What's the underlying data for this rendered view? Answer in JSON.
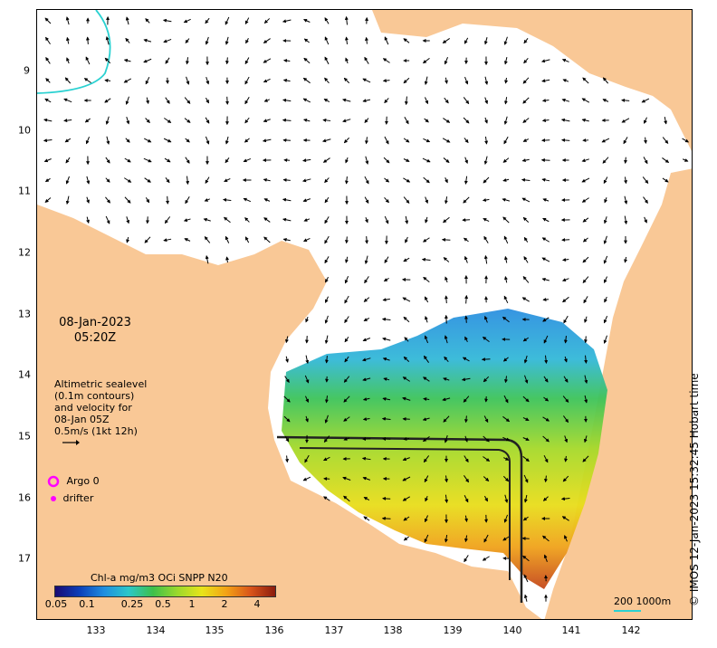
{
  "datetime": {
    "date": "08-Jan-2023",
    "time": "05:20Z"
  },
  "info_lines": [
    "Altimetric sealevel",
    "(0.1m contours)",
    "and velocity for",
    "08-Jan 05Z",
    "0.5m/s (1kt 12h)"
  ],
  "markers": {
    "argo": "Argo 0",
    "drifter": "drifter"
  },
  "colorbar": {
    "title": "Chl-a mg/m3 OCi SNPP N20",
    "tick_labels": [
      "0.05",
      "0.1",
      "0.25",
      "0.5",
      "1",
      "2",
      "4"
    ]
  },
  "x_ticks": [
    "133",
    "134",
    "135",
    "136",
    "137",
    "138",
    "139",
    "140",
    "141",
    "142"
  ],
  "y_ticks": [
    "9",
    "10",
    "11",
    "12",
    "13",
    "14",
    "15",
    "16",
    "17"
  ],
  "scale_bar": "200  1000m",
  "credit": "© IMOS 12-Jan-2023 15:32:45 Hobart time",
  "colors": {
    "land": "#f9c896",
    "argo": "#ff00ff",
    "drifter": "#ff00ff",
    "contour_cyan": "#2ad1d1"
  }
}
